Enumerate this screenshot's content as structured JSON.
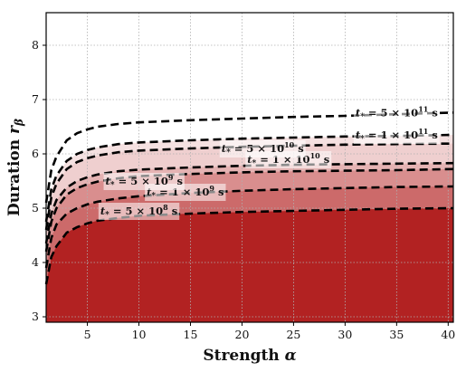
{
  "chart_data": {
    "type": "area",
    "xlabel": "Strength α",
    "ylabel": "Duration r_β",
    "xlim": [
      1,
      40.5
    ],
    "ylim": [
      2.9,
      8.6
    ],
    "xticks": [
      5,
      10,
      15,
      20,
      25,
      30,
      35,
      40
    ],
    "yticks": [
      3,
      4,
      5,
      6,
      7,
      8
    ],
    "grid": true,
    "x": [
      1,
      1.5,
      2,
      3,
      4,
      5,
      6,
      8,
      10,
      15,
      20,
      25,
      30,
      35,
      40.5
    ],
    "series": [
      {
        "name": "t* = 5 × 10^8 s",
        "color": "#b22222",
        "values": [
          3.6,
          4.1,
          4.3,
          4.55,
          4.65,
          4.72,
          4.77,
          4.82,
          4.86,
          4.9,
          4.93,
          4.95,
          4.97,
          4.99,
          5.0
        ]
      },
      {
        "name": "t* = 1 × 10^9 s",
        "color": "#cc6a6a",
        "values": [
          3.9,
          4.45,
          4.7,
          4.9,
          5.0,
          5.07,
          5.12,
          5.18,
          5.22,
          5.28,
          5.32,
          5.35,
          5.37,
          5.39,
          5.4
        ]
      },
      {
        "name": "t* = 5 × 10^9 s",
        "color": "#d98e8e",
        "values": [
          4.2,
          4.75,
          5.0,
          5.25,
          5.37,
          5.44,
          5.49,
          5.55,
          5.59,
          5.63,
          5.66,
          5.68,
          5.69,
          5.7,
          5.72
        ]
      },
      {
        "name": "t* = 1 × 10^10 s",
        "color": "#e5b3b3",
        "values": [
          4.35,
          4.9,
          5.15,
          5.38,
          5.5,
          5.57,
          5.62,
          5.68,
          5.71,
          5.75,
          5.78,
          5.8,
          5.81,
          5.82,
          5.83
        ]
      },
      {
        "name": "t* = 5 × 10^10 s",
        "color": "#efcfcf",
        "values": [
          4.6,
          5.2,
          5.45,
          5.72,
          5.85,
          5.92,
          5.97,
          6.03,
          6.06,
          6.1,
          6.13,
          6.15,
          6.17,
          6.18,
          6.19
        ]
      },
      {
        "name": "t* = 1 × 10^11 s",
        "color": "#f5e1e1",
        "values": [
          4.75,
          5.35,
          5.6,
          5.87,
          6.0,
          6.07,
          6.12,
          6.18,
          6.21,
          6.25,
          6.28,
          6.3,
          6.32,
          6.33,
          6.35
        ]
      },
      {
        "name": "t* = 5 × 10^11 s",
        "color": "#ffffff",
        "values": [
          5.1,
          5.7,
          5.95,
          6.25,
          6.38,
          6.45,
          6.5,
          6.55,
          6.58,
          6.62,
          6.65,
          6.68,
          6.7,
          6.73,
          6.76
        ]
      }
    ],
    "annotations": [
      {
        "text": "t* = 5 × 10^8 s",
        "x": 10,
        "y": 4.95
      },
      {
        "text": "t* = 1 × 10^9 s",
        "x": 14.5,
        "y": 5.3
      },
      {
        "text": "t* = 5 × 10^9 s",
        "x": 10.5,
        "y": 5.5
      },
      {
        "text": "t* = 1 × 10^10 s",
        "x": 24.5,
        "y": 5.9
      },
      {
        "text": "t* = 5 × 10^10 s",
        "x": 22,
        "y": 6.1
      },
      {
        "text": "t* = 1 × 10^11 s",
        "x": 35,
        "y": 6.35
      },
      {
        "text": "t* = 5 × 10^11 s",
        "x": 35,
        "y": 6.76
      }
    ]
  }
}
